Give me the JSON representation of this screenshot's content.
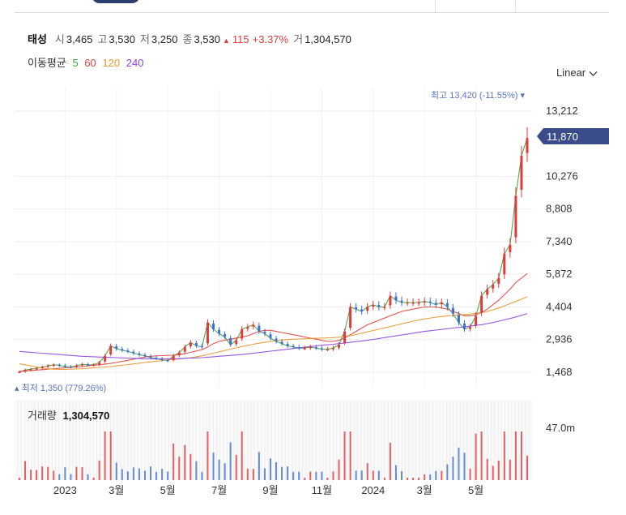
{
  "stock": {
    "name": "태성",
    "open_label": "시",
    "open": "3,465",
    "high_label": "고",
    "high": "3,530",
    "low_label": "저",
    "low": "3,250",
    "close_label": "종",
    "close": "3,530",
    "change": "115",
    "change_pct": "+3.37%",
    "volume_label": "거",
    "volume": "1,304,570"
  },
  "ma_legend": {
    "title": "이동평균",
    "items": [
      {
        "label": "5",
        "color": "#3aa33a"
      },
      {
        "label": "60",
        "color": "#e0433a"
      },
      {
        "label": "120",
        "color": "#e8962b"
      },
      {
        "label": "240",
        "color": "#8e44e0"
      }
    ]
  },
  "scale_selector": {
    "label": "Linear"
  },
  "markers": {
    "max_label": "최고",
    "max_value": "13,420 (-11.55%)",
    "min_label": "최저",
    "min_value": "1,350 (779.26%)",
    "current_price": "11,870"
  },
  "volume_panel": {
    "label": "거래량",
    "value": "1,304,570",
    "axis_label": "47.0m"
  },
  "colors": {
    "up": "#e03a3a",
    "down": "#3d6fd8",
    "current_badge": "#3a4d8a",
    "marker": "#5a74c0"
  },
  "chart_data": {
    "type": "line",
    "title": "",
    "xlabel": "",
    "ylabel": "",
    "ylim": [
      770,
      13900
    ],
    "y_ticks": [
      "13,212",
      "10,276",
      "8,808",
      "7,340",
      "5,872",
      "4,404",
      "2,936",
      "1,468"
    ],
    "y_tick_values": [
      13212,
      10276,
      8808,
      7340,
      5872,
      4404,
      2936,
      1468
    ],
    "x_ticks": [
      "2023",
      "3월",
      "5월",
      "7월",
      "9월",
      "11월",
      "2024",
      "3월",
      "5월"
    ],
    "x_tick_index": [
      8,
      17,
      26,
      35,
      44,
      53,
      62,
      71,
      80
    ],
    "series": [
      {
        "name": "5",
        "color": "#3aa33a",
        "values": [
          1480,
          1560,
          1600,
          1640,
          1700,
          1760,
          1800,
          1780,
          1720,
          1700,
          1760,
          1820,
          1800,
          1800,
          1900,
          2200,
          2650,
          2520,
          2450,
          2400,
          2320,
          2250,
          2200,
          2120,
          2080,
          2020,
          1980,
          2200,
          2350,
          2600,
          2800,
          2650,
          2600,
          3700,
          3400,
          3200,
          3050,
          2700,
          2900,
          3400,
          3500,
          3600,
          3300,
          3200,
          3000,
          2850,
          2750,
          2650,
          2600,
          2550,
          2550,
          2600,
          2550,
          2500,
          2500,
          2550,
          2700,
          3300,
          4400,
          4300,
          4200,
          4400,
          4500,
          4400,
          4400,
          4900,
          4700,
          4600,
          4600,
          4600,
          4600,
          4650,
          4600,
          4500,
          4600,
          4400,
          4100,
          3700,
          3400,
          3500,
          4000,
          4900,
          5200,
          5400,
          5700,
          6800,
          7200,
          9400,
          11200,
          12000
        ]
      },
      {
        "name": "60",
        "color": "#e0433a",
        "values": [
          1500,
          1520,
          1540,
          1560,
          1580,
          1600,
          1620,
          1640,
          1660,
          1680,
          1700,
          1720,
          1750,
          1780,
          1800,
          1830,
          1860,
          1900,
          1950,
          2000,
          2050,
          2100,
          2150,
          2180,
          2200,
          2210,
          2220,
          2230,
          2250,
          2300,
          2360,
          2420,
          2480,
          2600,
          2750,
          2850,
          2900,
          2950,
          3000,
          3050,
          3100,
          3200,
          3300,
          3350,
          3350,
          3300,
          3250,
          3200,
          3150,
          3100,
          3050,
          3000,
          2950,
          2900,
          2850,
          2850,
          2900,
          3000,
          3150,
          3300,
          3450,
          3600,
          3700,
          3800,
          3900,
          4000,
          4100,
          4200,
          4250,
          4300,
          4350,
          4400,
          4400,
          4400,
          4350,
          4300,
          4200,
          4100,
          4000,
          4000,
          4050,
          4150,
          4300,
          4500,
          4700,
          4950,
          5200,
          5500,
          5700,
          5900
        ]
      },
      {
        "name": "120",
        "color": "#e8962b",
        "values": [
          1850,
          1800,
          1750,
          1700,
          1660,
          1620,
          1600,
          1590,
          1590,
          1600,
          1610,
          1620,
          1640,
          1660,
          1680,
          1700,
          1720,
          1750,
          1780,
          1810,
          1840,
          1870,
          1900,
          1930,
          1960,
          1990,
          2010,
          2030,
          2060,
          2090,
          2120,
          2160,
          2200,
          2260,
          2320,
          2380,
          2440,
          2500,
          2560,
          2620,
          2670,
          2720,
          2770,
          2810,
          2850,
          2880,
          2910,
          2930,
          2950,
          2960,
          2970,
          2980,
          2990,
          3000,
          3010,
          3020,
          3040,
          3070,
          3110,
          3160,
          3220,
          3280,
          3340,
          3400,
          3460,
          3520,
          3580,
          3640,
          3700,
          3760,
          3810,
          3860,
          3900,
          3940,
          3970,
          4000,
          4020,
          4040,
          4060,
          4080,
          4110,
          4150,
          4200,
          4270,
          4350,
          4450,
          4550,
          4650,
          4750,
          4850
        ]
      },
      {
        "name": "240",
        "color": "#8e44e0",
        "values": [
          2400,
          2380,
          2360,
          2340,
          2320,
          2300,
          2280,
          2260,
          2240,
          2220,
          2200,
          2180,
          2170,
          2160,
          2150,
          2140,
          2130,
          2120,
          2110,
          2100,
          2090,
          2080,
          2070,
          2060,
          2060,
          2060,
          2060,
          2070,
          2080,
          2090,
          2100,
          2110,
          2120,
          2140,
          2160,
          2180,
          2200,
          2220,
          2240,
          2260,
          2290,
          2320,
          2350,
          2380,
          2410,
          2440,
          2470,
          2500,
          2530,
          2560,
          2590,
          2620,
          2650,
          2680,
          2700,
          2720,
          2750,
          2780,
          2810,
          2840,
          2870,
          2900,
          2940,
          2980,
          3020,
          3060,
          3100,
          3140,
          3180,
          3220,
          3260,
          3300,
          3330,
          3360,
          3390,
          3420,
          3450,
          3480,
          3510,
          3540,
          3570,
          3600,
          3650,
          3700,
          3760,
          3820,
          3880,
          3950,
          4020,
          4100
        ]
      }
    ],
    "volume_ylim": [
      0,
      55000000
    ]
  }
}
